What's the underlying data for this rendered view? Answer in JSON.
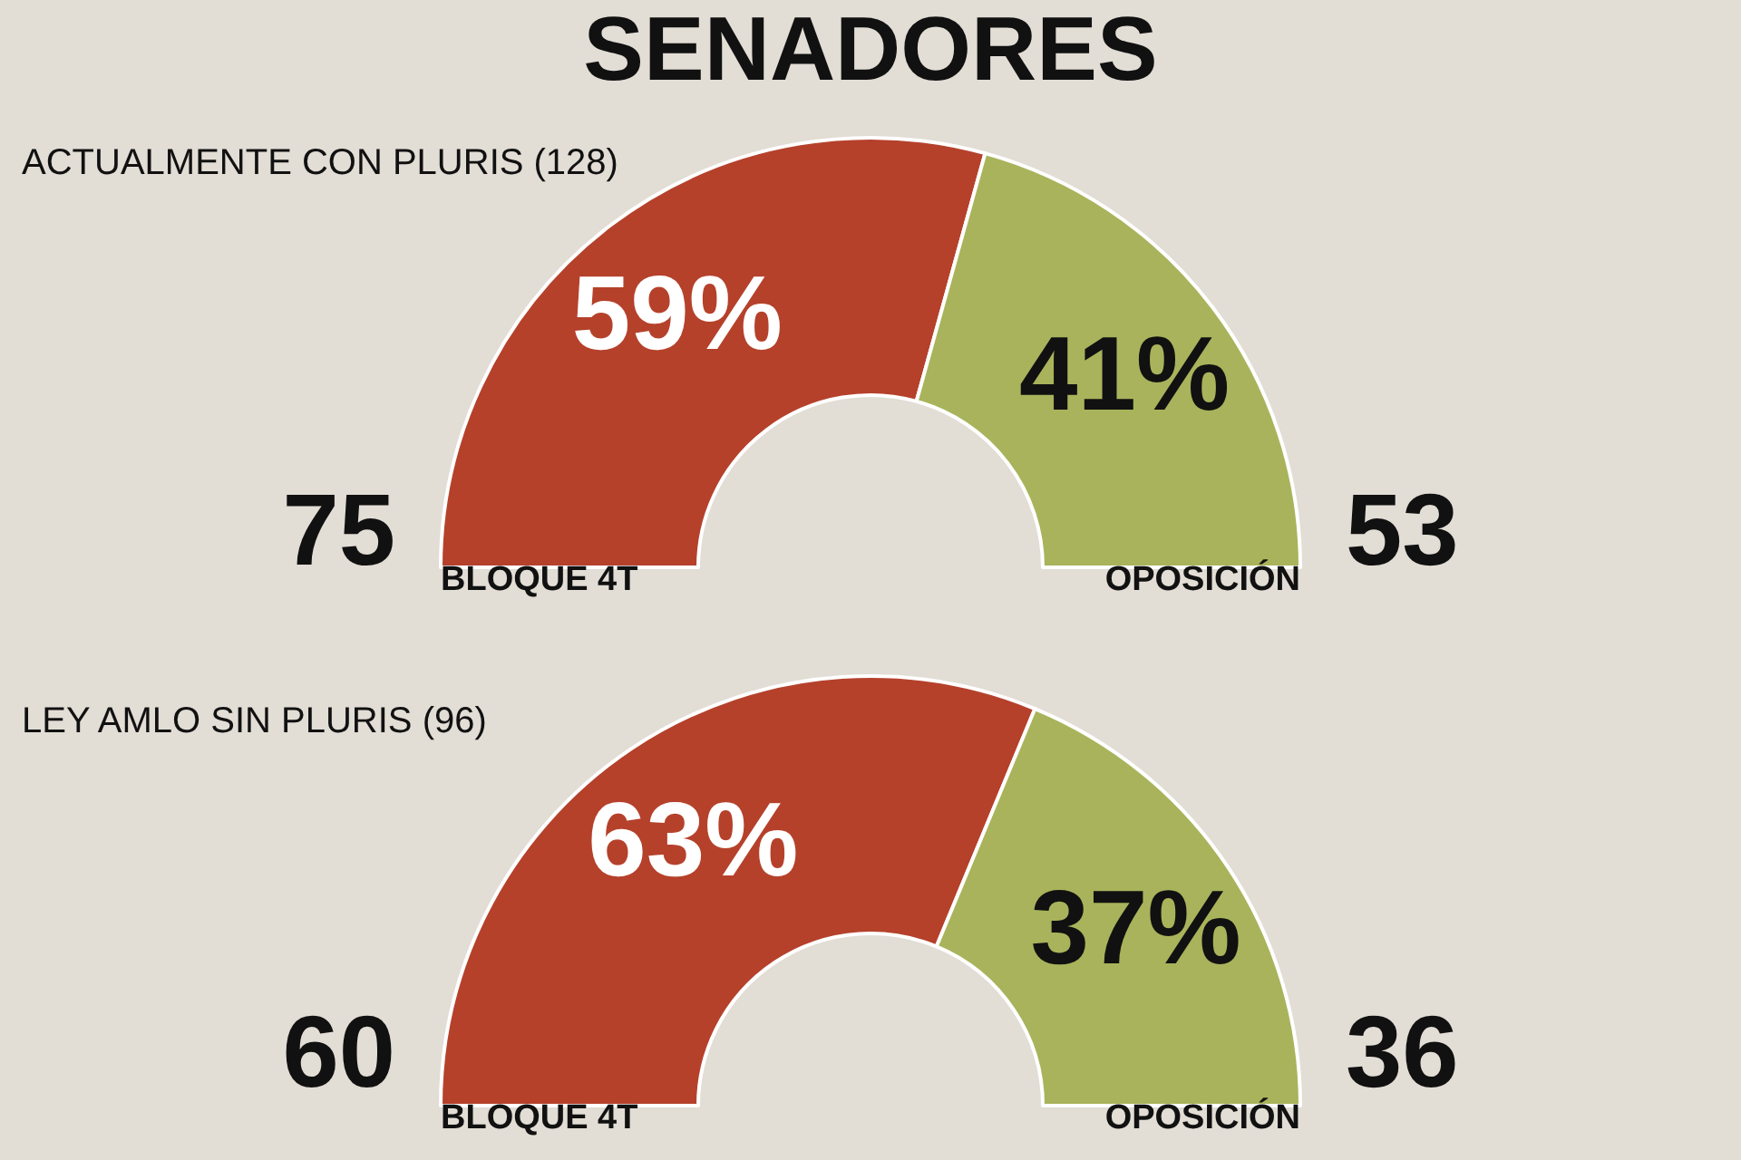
{
  "chart_data": [
    {
      "type": "donut",
      "title": "SENADORES",
      "subtitle": "ACTUALMENTE CON PLURIS (128)",
      "categories": [
        "BLOQUE 4T",
        "OPOSICIÓN"
      ],
      "values": [
        75,
        53
      ],
      "colors": [
        "#b5412b",
        "#a9b35b"
      ],
      "data_labels": true,
      "annotations": [
        "59%",
        "41%"
      ],
      "legend": false
    },
    {
      "type": "donut",
      "subtitle": "LEY AMLO SIN PLURIS (96)",
      "categories": [
        "BLOQUE 4T",
        "OPOSICIÓN"
      ],
      "values": [
        60,
        36
      ],
      "colors": [
        "#b5412b",
        "#a9b35b"
      ],
      "data_labels": true,
      "annotations": [
        "63%",
        "37%"
      ],
      "legend": false
    }
  ]
}
